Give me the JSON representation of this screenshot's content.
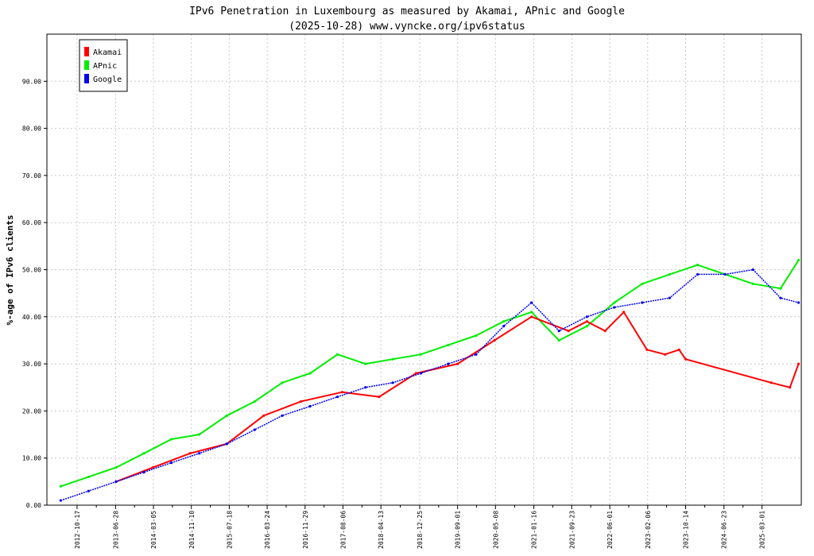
{
  "chart_data": {
    "type": "line",
    "title": "IPv6 Penetration in Luxembourg as measured by Akamai, APnic and Google",
    "subtitle": "(2025-10-28) www.vyncke.org/ipv6status",
    "ylabel": "%-age of IPv6 clients",
    "xlabel": "",
    "ylim": [
      0,
      100
    ],
    "xlim": [
      "2012-04-01",
      "2025-11-15"
    ],
    "grid": true,
    "legend_position": "top-left",
    "y_ticks": [
      "0.00",
      "10.00",
      "20.00",
      "30.00",
      "40.00",
      "50.00",
      "60.00",
      "70.00",
      "80.00",
      "90.00"
    ],
    "x_ticks": [
      "2012-10-17",
      "2013-06-28",
      "2014-03-05",
      "2014-11-10",
      "2015-07-18",
      "2016-03-24",
      "2016-11-29",
      "2017-08-06",
      "2018-04-13",
      "2018-12-25",
      "2019-09-01",
      "2020-05-08",
      "2021-01-16",
      "2021-09-23",
      "2022-06-01",
      "2023-02-06",
      "2023-10-14",
      "2024-06-23",
      "2025-03-01"
    ],
    "series": [
      {
        "name": "Akamai",
        "color": "#ff0000",
        "x": [
          "2013-07-01",
          "2014-03-01",
          "2014-11-01",
          "2015-07-01",
          "2016-03-01",
          "2016-11-01",
          "2017-08-01",
          "2018-04-01",
          "2018-12-01",
          "2019-09-01",
          "2020-05-01",
          "2021-01-01",
          "2021-09-01",
          "2022-01-01",
          "2022-05-01",
          "2022-09-01",
          "2023-02-01",
          "2023-06-01",
          "2023-09-01",
          "2023-10-14",
          "2025-05-01",
          "2025-09-01",
          "2025-10-28"
        ],
        "y": [
          5,
          8,
          11,
          13,
          19,
          22,
          24,
          23,
          28,
          30,
          35,
          40,
          37,
          39,
          37,
          41,
          33,
          32,
          33,
          31,
          26,
          25,
          30
        ]
      },
      {
        "name": "APnic",
        "color": "#00ee00",
        "x": [
          "2012-07-01",
          "2013-01-01",
          "2013-07-01",
          "2014-01-01",
          "2014-07-01",
          "2015-01-01",
          "2015-07-01",
          "2016-01-01",
          "2016-07-01",
          "2017-01-01",
          "2017-07-01",
          "2018-01-01",
          "2018-07-01",
          "2019-01-01",
          "2019-07-01",
          "2020-01-01",
          "2020-07-01",
          "2021-01-01",
          "2021-07-01",
          "2022-01-01",
          "2022-07-01",
          "2023-01-01",
          "2023-07-01",
          "2024-01-01",
          "2024-07-01",
          "2025-01-01",
          "2025-07-01",
          "2025-10-28"
        ],
        "y": [
          4,
          6,
          8,
          11,
          14,
          15,
          19,
          22,
          26,
          28,
          32,
          30,
          31,
          32,
          34,
          36,
          39,
          41,
          35,
          38,
          43,
          47,
          49,
          51,
          49,
          47,
          46,
          52
        ]
      },
      {
        "name": "Google",
        "color": "#0000ee",
        "x": [
          "2012-07-01",
          "2013-01-01",
          "2013-07-01",
          "2014-01-01",
          "2014-07-01",
          "2015-01-01",
          "2015-07-01",
          "2016-01-01",
          "2016-07-01",
          "2017-01-01",
          "2017-07-01",
          "2018-01-01",
          "2018-07-01",
          "2019-01-01",
          "2019-07-01",
          "2020-01-01",
          "2020-07-01",
          "2021-01-01",
          "2021-07-01",
          "2022-01-01",
          "2022-07-01",
          "2023-01-01",
          "2023-07-01",
          "2024-01-01",
          "2024-07-01",
          "2025-01-01",
          "2025-07-01",
          "2025-10-28"
        ],
        "y": [
          1,
          3,
          5,
          7,
          9,
          11,
          13,
          16,
          19,
          21,
          23,
          25,
          26,
          28,
          30,
          32,
          38,
          43,
          37,
          40,
          42,
          43,
          44,
          49,
          49,
          50,
          44,
          43
        ]
      }
    ]
  }
}
